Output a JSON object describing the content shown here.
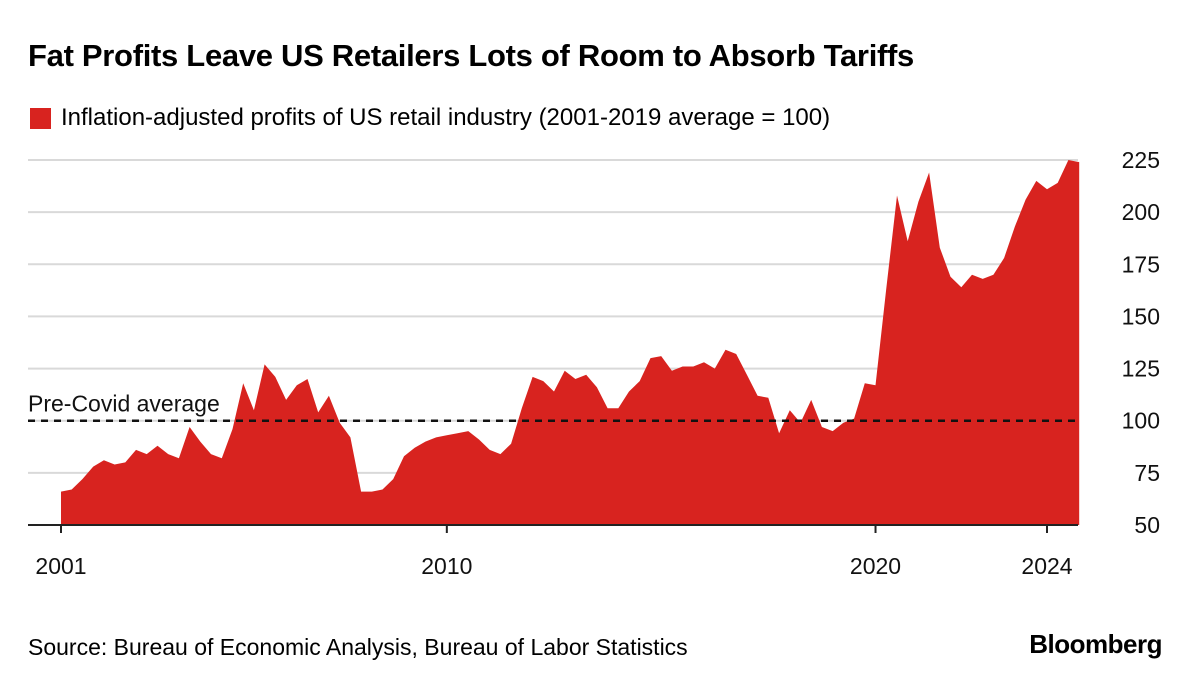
{
  "header": {
    "title": "Fat Profits Leave US Retailers Lots of Room to Absorb Tariffs"
  },
  "legend": {
    "label": "Inflation-adjusted profits of US retail industry (2001-2019 average = 100)",
    "color": "#d8231f"
  },
  "chart_data": {
    "type": "area",
    "title": "Fat Profits Leave US Retailers Lots of Room to Absorb Tariffs",
    "series": [
      {
        "name": "Inflation-adjusted profits of US retail industry (2001-2019 average = 100)",
        "color": "#d8231f",
        "points": [
          [
            2001.0,
            66
          ],
          [
            2001.25,
            67
          ],
          [
            2001.5,
            72
          ],
          [
            2001.75,
            78
          ],
          [
            2002.0,
            81
          ],
          [
            2002.25,
            79
          ],
          [
            2002.5,
            80
          ],
          [
            2002.75,
            86
          ],
          [
            2003.0,
            84
          ],
          [
            2003.25,
            88
          ],
          [
            2003.5,
            84
          ],
          [
            2003.75,
            82
          ],
          [
            2004.0,
            97
          ],
          [
            2004.25,
            90
          ],
          [
            2004.5,
            84
          ],
          [
            2004.75,
            82
          ],
          [
            2005.0,
            96
          ],
          [
            2005.25,
            118
          ],
          [
            2005.5,
            105
          ],
          [
            2005.75,
            127
          ],
          [
            2006.0,
            121
          ],
          [
            2006.25,
            110
          ],
          [
            2006.5,
            117
          ],
          [
            2006.75,
            120
          ],
          [
            2007.0,
            104
          ],
          [
            2007.25,
            112
          ],
          [
            2007.5,
            99
          ],
          [
            2007.75,
            92
          ],
          [
            2008.0,
            66
          ],
          [
            2008.25,
            66
          ],
          [
            2008.5,
            67
          ],
          [
            2008.75,
            72
          ],
          [
            2009.0,
            83
          ],
          [
            2009.25,
            87
          ],
          [
            2009.5,
            90
          ],
          [
            2009.75,
            92
          ],
          [
            2010.0,
            93
          ],
          [
            2010.25,
            94
          ],
          [
            2010.5,
            95
          ],
          [
            2010.75,
            91
          ],
          [
            2011.0,
            86
          ],
          [
            2011.25,
            84
          ],
          [
            2011.5,
            89
          ],
          [
            2011.75,
            106
          ],
          [
            2012.0,
            121
          ],
          [
            2012.25,
            119
          ],
          [
            2012.5,
            114
          ],
          [
            2012.75,
            124
          ],
          [
            2013.0,
            120
          ],
          [
            2013.25,
            122
          ],
          [
            2013.5,
            116
          ],
          [
            2013.75,
            106
          ],
          [
            2014.0,
            106
          ],
          [
            2014.25,
            114
          ],
          [
            2014.5,
            119
          ],
          [
            2014.75,
            130
          ],
          [
            2015.0,
            131
          ],
          [
            2015.25,
            124
          ],
          [
            2015.5,
            126
          ],
          [
            2015.75,
            126
          ],
          [
            2016.0,
            128
          ],
          [
            2016.25,
            125
          ],
          [
            2016.5,
            134
          ],
          [
            2016.75,
            132
          ],
          [
            2017.0,
            122
          ],
          [
            2017.25,
            112
          ],
          [
            2017.5,
            111
          ],
          [
            2017.75,
            94
          ],
          [
            2018.0,
            105
          ],
          [
            2018.25,
            99
          ],
          [
            2018.5,
            110
          ],
          [
            2018.75,
            97
          ],
          [
            2019.0,
            95
          ],
          [
            2019.25,
            99
          ],
          [
            2019.5,
            101
          ],
          [
            2019.75,
            118
          ],
          [
            2020.0,
            117
          ],
          [
            2020.25,
            163
          ],
          [
            2020.5,
            208
          ],
          [
            2020.75,
            186
          ],
          [
            2021.0,
            205
          ],
          [
            2021.25,
            219
          ],
          [
            2021.5,
            183
          ],
          [
            2021.75,
            169
          ],
          [
            2022.0,
            164
          ],
          [
            2022.25,
            170
          ],
          [
            2022.5,
            168
          ],
          [
            2022.75,
            170
          ],
          [
            2023.0,
            178
          ],
          [
            2023.25,
            193
          ],
          [
            2023.5,
            206
          ],
          [
            2023.75,
            215
          ],
          [
            2024.0,
            211
          ],
          [
            2024.25,
            214
          ],
          [
            2024.5,
            225
          ],
          [
            2024.75,
            224
          ]
        ]
      }
    ],
    "reference_line": {
      "value": 100,
      "label": "Pre-Covid average",
      "style": "dashed"
    },
    "x_ticks": [
      2001,
      2010,
      2020,
      2024
    ],
    "y_ticks": [
      50,
      75,
      100,
      125,
      150,
      175,
      200,
      225
    ],
    "xlim": [
      2001,
      2025
    ],
    "ylim": [
      50,
      225
    ],
    "y_axis_side": "right",
    "grid": "horizontal",
    "xlabel": "",
    "ylabel": ""
  },
  "footer": {
    "source": "Source: Bureau of Economic Analysis, Bureau of Labor Statistics",
    "brand": "Bloomberg"
  }
}
